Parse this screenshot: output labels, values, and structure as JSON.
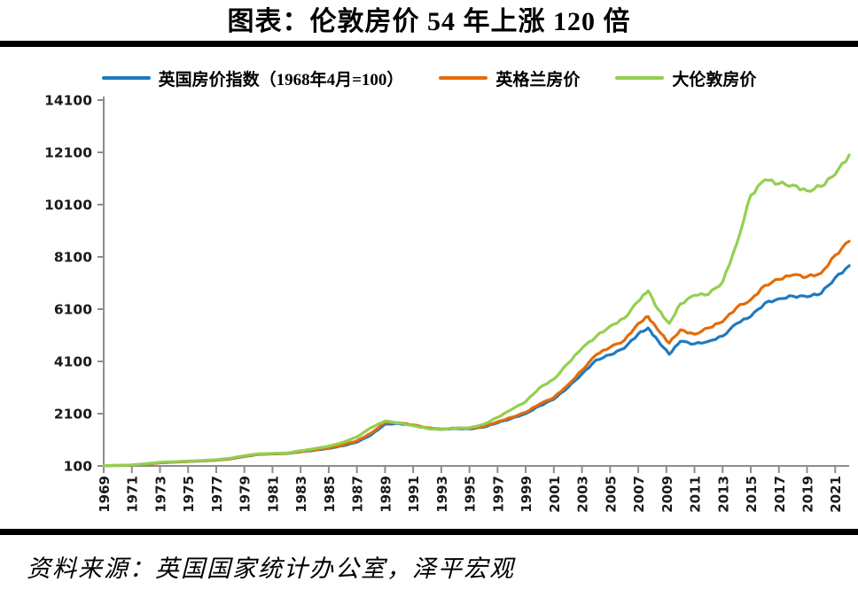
{
  "title": "图表：伦敦房价 54 年上涨 120 倍",
  "source_note": "资料来源：英国国家统计办公室，泽平宏观",
  "colors": {
    "uk_blue": "#1F7AC0",
    "england_orange": "#E36C0A",
    "london_green": "#92D050",
    "axis_gray": "#8C8C8C",
    "rule_black": "#000000",
    "tick_text": "#1A1A1A"
  },
  "legend": {
    "items": [
      {
        "label": "英国房价指数（1968年4月=100）",
        "series": 0
      },
      {
        "label": "英格兰房价",
        "series": 1
      },
      {
        "label": "大伦敦房价",
        "series": 2
      }
    ]
  },
  "chart_data": {
    "type": "line",
    "title": "图表：伦敦房价 54 年上涨 120 倍",
    "xlabel": "",
    "ylabel": "",
    "grid": false,
    "legend_position": "top",
    "ylim": [
      100,
      14100
    ],
    "xlim": [
      1969,
      2022.5
    ],
    "y_ticks": [
      100,
      2100,
      4100,
      6100,
      8100,
      10100,
      12100,
      14100
    ],
    "x_tick_years": [
      1969,
      1971,
      1973,
      1975,
      1977,
      1979,
      1981,
      1983,
      1985,
      1987,
      1989,
      1991,
      1993,
      1995,
      1997,
      1999,
      2001,
      2003,
      2005,
      2007,
      2009,
      2011,
      2013,
      2015,
      2017,
      2019,
      2021
    ],
    "x": [
      1969,
      1970,
      1971,
      1972,
      1973,
      1974,
      1975,
      1976,
      1977,
      1978,
      1979,
      1980,
      1981,
      1982,
      1983,
      1984,
      1985,
      1986,
      1987,
      1988,
      1989,
      1990,
      1991,
      1992,
      1993,
      1994,
      1995,
      1996,
      1997,
      1998,
      1999,
      2000,
      2001,
      2002,
      2003,
      2004,
      2005,
      2006,
      2007,
      2007.7,
      2008.4,
      2009.2,
      2010,
      2011,
      2012,
      2013,
      2014,
      2015,
      2016,
      2017,
      2018,
      2019,
      2020,
      2021,
      2022
    ],
    "series": [
      {
        "name": "英国房价指数（1968年4月=100）",
        "color": "#1F7AC0",
        "values": [
          110,
          118,
          132,
          170,
          220,
          245,
          270,
          295,
          320,
          370,
          460,
          540,
          560,
          575,
          640,
          700,
          770,
          870,
          1010,
          1280,
          1700,
          1720,
          1650,
          1550,
          1500,
          1530,
          1520,
          1580,
          1750,
          1920,
          2100,
          2400,
          2650,
          3100,
          3620,
          4150,
          4350,
          4600,
          5150,
          5380,
          4900,
          4370,
          4870,
          4770,
          4870,
          5070,
          5550,
          5820,
          6330,
          6500,
          6600,
          6570,
          6700,
          7300,
          7760
        ]
      },
      {
        "name": "英格兰房价",
        "color": "#E36C0A",
        "values": [
          110,
          118,
          133,
          172,
          222,
          248,
          272,
          298,
          325,
          375,
          465,
          545,
          565,
          580,
          650,
          715,
          790,
          900,
          1060,
          1350,
          1760,
          1750,
          1670,
          1560,
          1510,
          1545,
          1540,
          1610,
          1790,
          1960,
          2150,
          2470,
          2720,
          3200,
          3760,
          4350,
          4640,
          4900,
          5550,
          5820,
          5300,
          4800,
          5310,
          5140,
          5380,
          5620,
          6160,
          6460,
          7010,
          7240,
          7410,
          7340,
          7480,
          8160,
          8700
        ]
      },
      {
        "name": "大伦敦房价",
        "color": "#92D050",
        "values": [
          112,
          122,
          140,
          185,
          240,
          262,
          285,
          310,
          338,
          395,
          490,
          565,
          580,
          595,
          680,
          760,
          855,
          1000,
          1210,
          1560,
          1820,
          1740,
          1640,
          1530,
          1490,
          1545,
          1560,
          1690,
          1960,
          2260,
          2560,
          3100,
          3420,
          4020,
          4600,
          5050,
          5450,
          5750,
          6400,
          6800,
          6100,
          5550,
          6300,
          6630,
          6670,
          7140,
          8600,
          10460,
          11050,
          10900,
          10850,
          10630,
          10800,
          11250,
          12000
        ]
      }
    ]
  }
}
